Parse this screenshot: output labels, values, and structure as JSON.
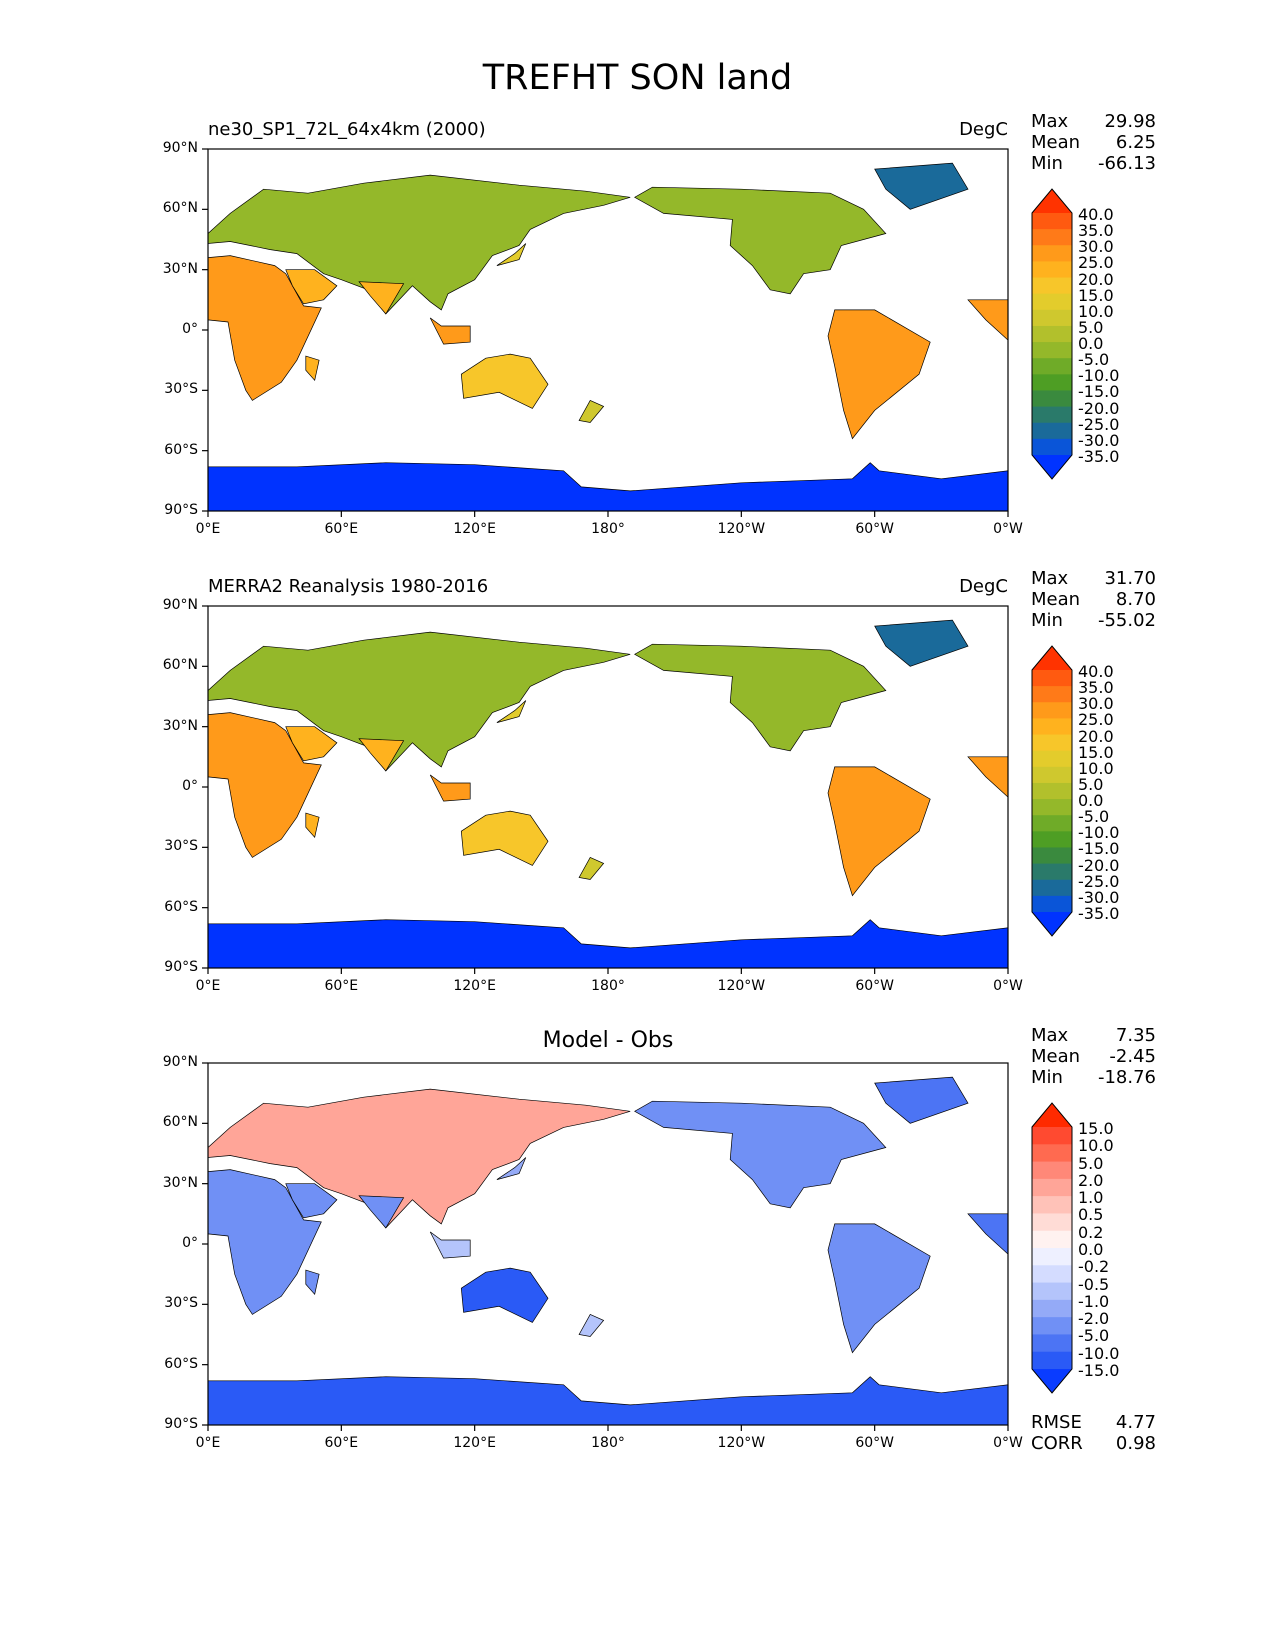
{
  "title": "TREFHT SON land",
  "panels": [
    {
      "title_left": "ne30_SP1_72L_64x4km (2000)",
      "title_center": "",
      "units": "DegC",
      "stats": [
        {
          "label": "Max",
          "value": "29.98"
        },
        {
          "label": "Mean",
          "value": "6.25"
        },
        {
          "label": "Min",
          "value": "-66.13"
        }
      ],
      "colorbar": {
        "labels": [
          "40.0",
          "35.0",
          "30.0",
          "25.0",
          "20.0",
          "15.0",
          "10.0",
          "5.0",
          "0.0",
          "-5.0",
          "-10.0",
          "-15.0",
          "-20.0",
          "-25.0",
          "-30.0",
          "-35.0"
        ],
        "colors": [
          "#ff3300",
          "#ff5a10",
          "#ff7a18",
          "#ff9a1a",
          "#ffb21e",
          "#f7c62a",
          "#e3cc2c",
          "#cfc82e",
          "#b2c02c",
          "#94b82a",
          "#6fab28",
          "#4e9e24",
          "#3a8a3e",
          "#2a7a6a",
          "#1a6a9a",
          "#0a55d8",
          "#0033ff"
        ]
      },
      "map_kind": "abs"
    },
    {
      "title_left": "MERRA2 Reanalysis 1980-2016",
      "title_center": "",
      "units": "DegC",
      "stats": [
        {
          "label": "Max",
          "value": "31.70"
        },
        {
          "label": "Mean",
          "value": "8.70"
        },
        {
          "label": "Min",
          "value": "-55.02"
        }
      ],
      "colorbar": {
        "labels": [
          "40.0",
          "35.0",
          "30.0",
          "25.0",
          "20.0",
          "15.0",
          "10.0",
          "5.0",
          "0.0",
          "-5.0",
          "-10.0",
          "-15.0",
          "-20.0",
          "-25.0",
          "-30.0",
          "-35.0"
        ],
        "colors": [
          "#ff3300",
          "#ff5a10",
          "#ff7a18",
          "#ff9a1a",
          "#ffb21e",
          "#f7c62a",
          "#e3cc2c",
          "#cfc82e",
          "#b2c02c",
          "#94b82a",
          "#6fab28",
          "#4e9e24",
          "#3a8a3e",
          "#2a7a6a",
          "#1a6a9a",
          "#0a55d8",
          "#0033ff"
        ]
      },
      "map_kind": "abs"
    },
    {
      "title_left": "",
      "title_center": "Model - Obs",
      "units": "",
      "stats": [
        {
          "label": "Max",
          "value": "7.35"
        },
        {
          "label": "Mean",
          "value": "-2.45"
        },
        {
          "label": "Min",
          "value": "-18.76"
        }
      ],
      "extra_stats": [
        {
          "label": "RMSE",
          "value": "4.77"
        },
        {
          "label": "CORR",
          "value": "0.98"
        }
      ],
      "colorbar": {
        "labels": [
          "15.0",
          "10.0",
          "5.0",
          "2.0",
          "1.0",
          "0.5",
          "0.2",
          "0.0",
          "-0.2",
          "-0.5",
          "-1.0",
          "-2.0",
          "-5.0",
          "-10.0",
          "-15.0"
        ],
        "colors": [
          "#ff2a00",
          "#ff4a30",
          "#ff6a50",
          "#ff8878",
          "#ffa598",
          "#ffc2b8",
          "#ffdcd6",
          "#fff2f0",
          "#eef0ff",
          "#d4dcff",
          "#b4c4fb",
          "#94aaf7",
          "#7090f5",
          "#4c74f4",
          "#2a5af6",
          "#0a3cff"
        ]
      },
      "map_kind": "diff"
    }
  ],
  "axes": {
    "y_ticks": [
      "90°N",
      "60°N",
      "30°N",
      "0°",
      "30°S",
      "60°S",
      "90°S"
    ],
    "x_ticks": [
      "0°E",
      "60°E",
      "120°E",
      "180°",
      "120°W",
      "60°W",
      "0°W"
    ]
  }
}
